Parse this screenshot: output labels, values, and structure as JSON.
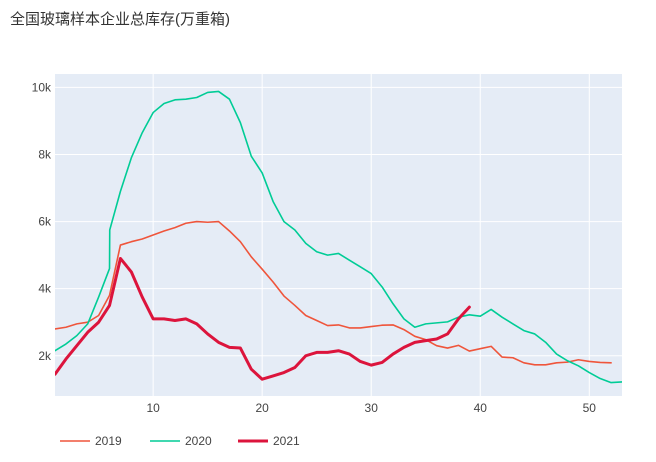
{
  "chart_data": {
    "type": "line",
    "title": "全国玻璃样本企业总库存(万重箱)",
    "xlabel": "",
    "ylabel": "",
    "xlim": [
      1,
      53
    ],
    "ylim": [
      800,
      10400
    ],
    "x_ticks": [
      10,
      20,
      30,
      40,
      50
    ],
    "y_ticks": [
      {
        "value": 2000,
        "label": "2k"
      },
      {
        "value": 4000,
        "label": "4k"
      },
      {
        "value": 6000,
        "label": "6k"
      },
      {
        "value": 8000,
        "label": "8k"
      },
      {
        "value": 10000,
        "label": "10k"
      }
    ],
    "grid": true,
    "legend_position": "bottom-left",
    "background_color": "#e5ecf6",
    "series": [
      {
        "name": "2019",
        "color": "#ef553b",
        "width": 1.6,
        "points": [
          [
            1,
            2800
          ],
          [
            2,
            2850
          ],
          [
            3,
            2950
          ],
          [
            4,
            3000
          ],
          [
            5,
            3200
          ],
          [
            6,
            3800
          ],
          [
            7,
            5300
          ],
          [
            8,
            5400
          ],
          [
            9,
            5480
          ],
          [
            10,
            5600
          ],
          [
            11,
            5720
          ],
          [
            12,
            5820
          ],
          [
            13,
            5950
          ],
          [
            14,
            6000
          ],
          [
            15,
            5980
          ],
          [
            16,
            6000
          ],
          [
            17,
            5720
          ],
          [
            18,
            5400
          ],
          [
            19,
            4950
          ],
          [
            20,
            4580
          ],
          [
            21,
            4200
          ],
          [
            22,
            3780
          ],
          [
            23,
            3500
          ],
          [
            24,
            3200
          ],
          [
            25,
            3050
          ],
          [
            26,
            2900
          ],
          [
            27,
            2920
          ],
          [
            28,
            2830
          ],
          [
            29,
            2830
          ],
          [
            30,
            2870
          ],
          [
            31,
            2910
          ],
          [
            32,
            2920
          ],
          [
            33,
            2780
          ],
          [
            34,
            2580
          ],
          [
            35,
            2480
          ],
          [
            36,
            2300
          ],
          [
            37,
            2230
          ],
          [
            38,
            2310
          ],
          [
            39,
            2140
          ],
          [
            40,
            2210
          ],
          [
            41,
            2280
          ],
          [
            42,
            1960
          ],
          [
            43,
            1940
          ],
          [
            44,
            1790
          ],
          [
            45,
            1730
          ],
          [
            46,
            1730
          ],
          [
            47,
            1790
          ],
          [
            48,
            1810
          ],
          [
            49,
            1880
          ],
          [
            50,
            1830
          ],
          [
            51,
            1800
          ],
          [
            52,
            1790
          ]
        ]
      },
      {
        "name": "2020",
        "color": "#00cc96",
        "width": 1.6,
        "points": [
          [
            1,
            2150
          ],
          [
            2,
            2350
          ],
          [
            3,
            2600
          ],
          [
            4,
            2950
          ],
          [
            5,
            3750
          ],
          [
            6,
            4600
          ],
          [
            6.02,
            5750
          ],
          [
            7,
            6900
          ],
          [
            8,
            7900
          ],
          [
            9,
            8650
          ],
          [
            10,
            9250
          ],
          [
            11,
            9520
          ],
          [
            12,
            9630
          ],
          [
            13,
            9650
          ],
          [
            14,
            9700
          ],
          [
            15,
            9850
          ],
          [
            16,
            9880
          ],
          [
            17,
            9650
          ],
          [
            18,
            8950
          ],
          [
            19,
            7950
          ],
          [
            20,
            7450
          ],
          [
            21,
            6600
          ],
          [
            22,
            6000
          ],
          [
            23,
            5750
          ],
          [
            24,
            5350
          ],
          [
            25,
            5100
          ],
          [
            26,
            5000
          ],
          [
            27,
            5050
          ],
          [
            28,
            4850
          ],
          [
            29,
            4650
          ],
          [
            30,
            4450
          ],
          [
            31,
            4050
          ],
          [
            32,
            3550
          ],
          [
            33,
            3100
          ],
          [
            34,
            2850
          ],
          [
            35,
            2950
          ],
          [
            36,
            2980
          ],
          [
            37,
            3010
          ],
          [
            38,
            3150
          ],
          [
            39,
            3220
          ],
          [
            40,
            3180
          ],
          [
            41,
            3380
          ],
          [
            42,
            3150
          ],
          [
            43,
            2950
          ],
          [
            44,
            2750
          ],
          [
            45,
            2650
          ],
          [
            46,
            2400
          ],
          [
            47,
            2050
          ],
          [
            48,
            1850
          ],
          [
            49,
            1700
          ],
          [
            50,
            1500
          ],
          [
            51,
            1320
          ],
          [
            52,
            1200
          ],
          [
            53,
            1220
          ]
        ]
      },
      {
        "name": "2021",
        "color": "#dc143c",
        "width": 3,
        "points": [
          [
            1,
            1450
          ],
          [
            2,
            1900
          ],
          [
            3,
            2300
          ],
          [
            4,
            2700
          ],
          [
            5,
            3000
          ],
          [
            6,
            3500
          ],
          [
            7,
            4900
          ],
          [
            8,
            4500
          ],
          [
            9,
            3750
          ],
          [
            10,
            3100
          ],
          [
            11,
            3100
          ],
          [
            12,
            3050
          ],
          [
            13,
            3100
          ],
          [
            14,
            2950
          ],
          [
            15,
            2650
          ],
          [
            16,
            2400
          ],
          [
            17,
            2250
          ],
          [
            18,
            2230
          ],
          [
            19,
            1600
          ],
          [
            20,
            1300
          ],
          [
            21,
            1400
          ],
          [
            22,
            1500
          ],
          [
            23,
            1650
          ],
          [
            24,
            2000
          ],
          [
            25,
            2100
          ],
          [
            26,
            2100
          ],
          [
            27,
            2150
          ],
          [
            28,
            2050
          ],
          [
            29,
            1830
          ],
          [
            30,
            1720
          ],
          [
            31,
            1800
          ],
          [
            32,
            2050
          ],
          [
            33,
            2250
          ],
          [
            34,
            2400
          ],
          [
            35,
            2450
          ],
          [
            36,
            2500
          ],
          [
            37,
            2650
          ],
          [
            38,
            3100
          ],
          [
            39,
            3450
          ]
        ]
      }
    ]
  }
}
